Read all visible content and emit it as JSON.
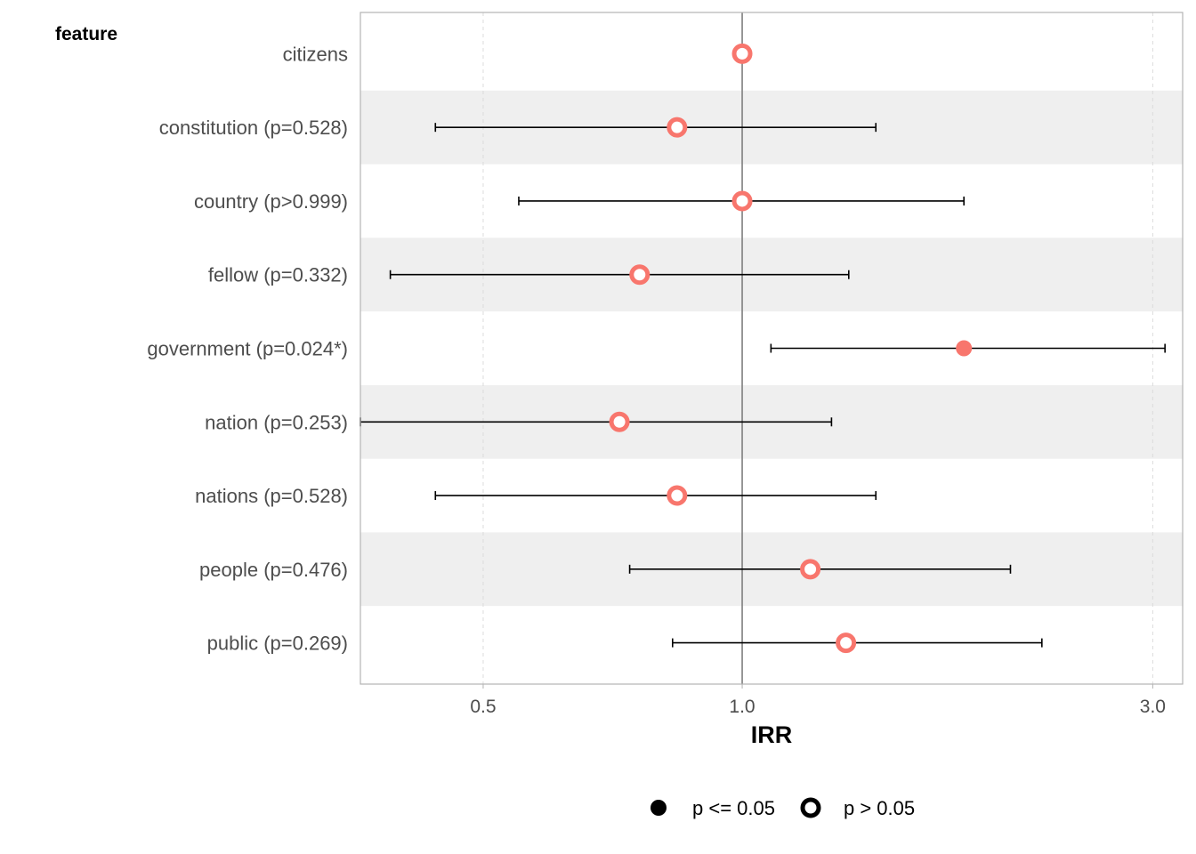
{
  "chart_data": {
    "type": "scatter",
    "row_header": "feature",
    "xlabel": "IRR",
    "x_scale": "log",
    "xlim": [
      0.36,
      3.25
    ],
    "x_ticks": [
      {
        "value": 0.5,
        "label": "0.5"
      },
      {
        "value": 1.0,
        "label": "1.0"
      },
      {
        "value": 3.0,
        "label": "3.0"
      }
    ],
    "reference_line": 1.0,
    "point_color": "#F8766D",
    "band_color": "#efefef",
    "rows": [
      {
        "label": "citizens",
        "irr": 1.0,
        "lower": null,
        "upper": null,
        "significant": false
      },
      {
        "label": "constitution (p=0.528)",
        "irr": 0.84,
        "lower": 0.44,
        "upper": 1.43,
        "significant": false
      },
      {
        "label": "country (p>0.999)",
        "irr": 1.0,
        "lower": 0.55,
        "upper": 1.81,
        "significant": false
      },
      {
        "label": "fellow (p=0.332)",
        "irr": 0.76,
        "lower": 0.39,
        "upper": 1.33,
        "significant": false
      },
      {
        "label": "government (p=0.024*)",
        "irr": 1.81,
        "lower": 1.08,
        "upper": 3.1,
        "significant": true
      },
      {
        "label": "nation (p=0.253)",
        "irr": 0.72,
        "lower": 0.36,
        "upper": 1.27,
        "significant": false
      },
      {
        "label": "nations (p=0.528)",
        "irr": 0.84,
        "lower": 0.44,
        "upper": 1.43,
        "significant": false
      },
      {
        "label": "people (p=0.476)",
        "irr": 1.2,
        "lower": 0.74,
        "upper": 2.05,
        "significant": false
      },
      {
        "label": "public (p=0.269)",
        "irr": 1.32,
        "lower": 0.83,
        "upper": 2.23,
        "significant": false
      }
    ],
    "legend": {
      "position": "bottom",
      "items": [
        {
          "label": "p <= 0.05",
          "marker": "filled-circle"
        },
        {
          "label": "p > 0.05",
          "marker": "hollow-circle"
        }
      ]
    },
    "grid": true
  }
}
